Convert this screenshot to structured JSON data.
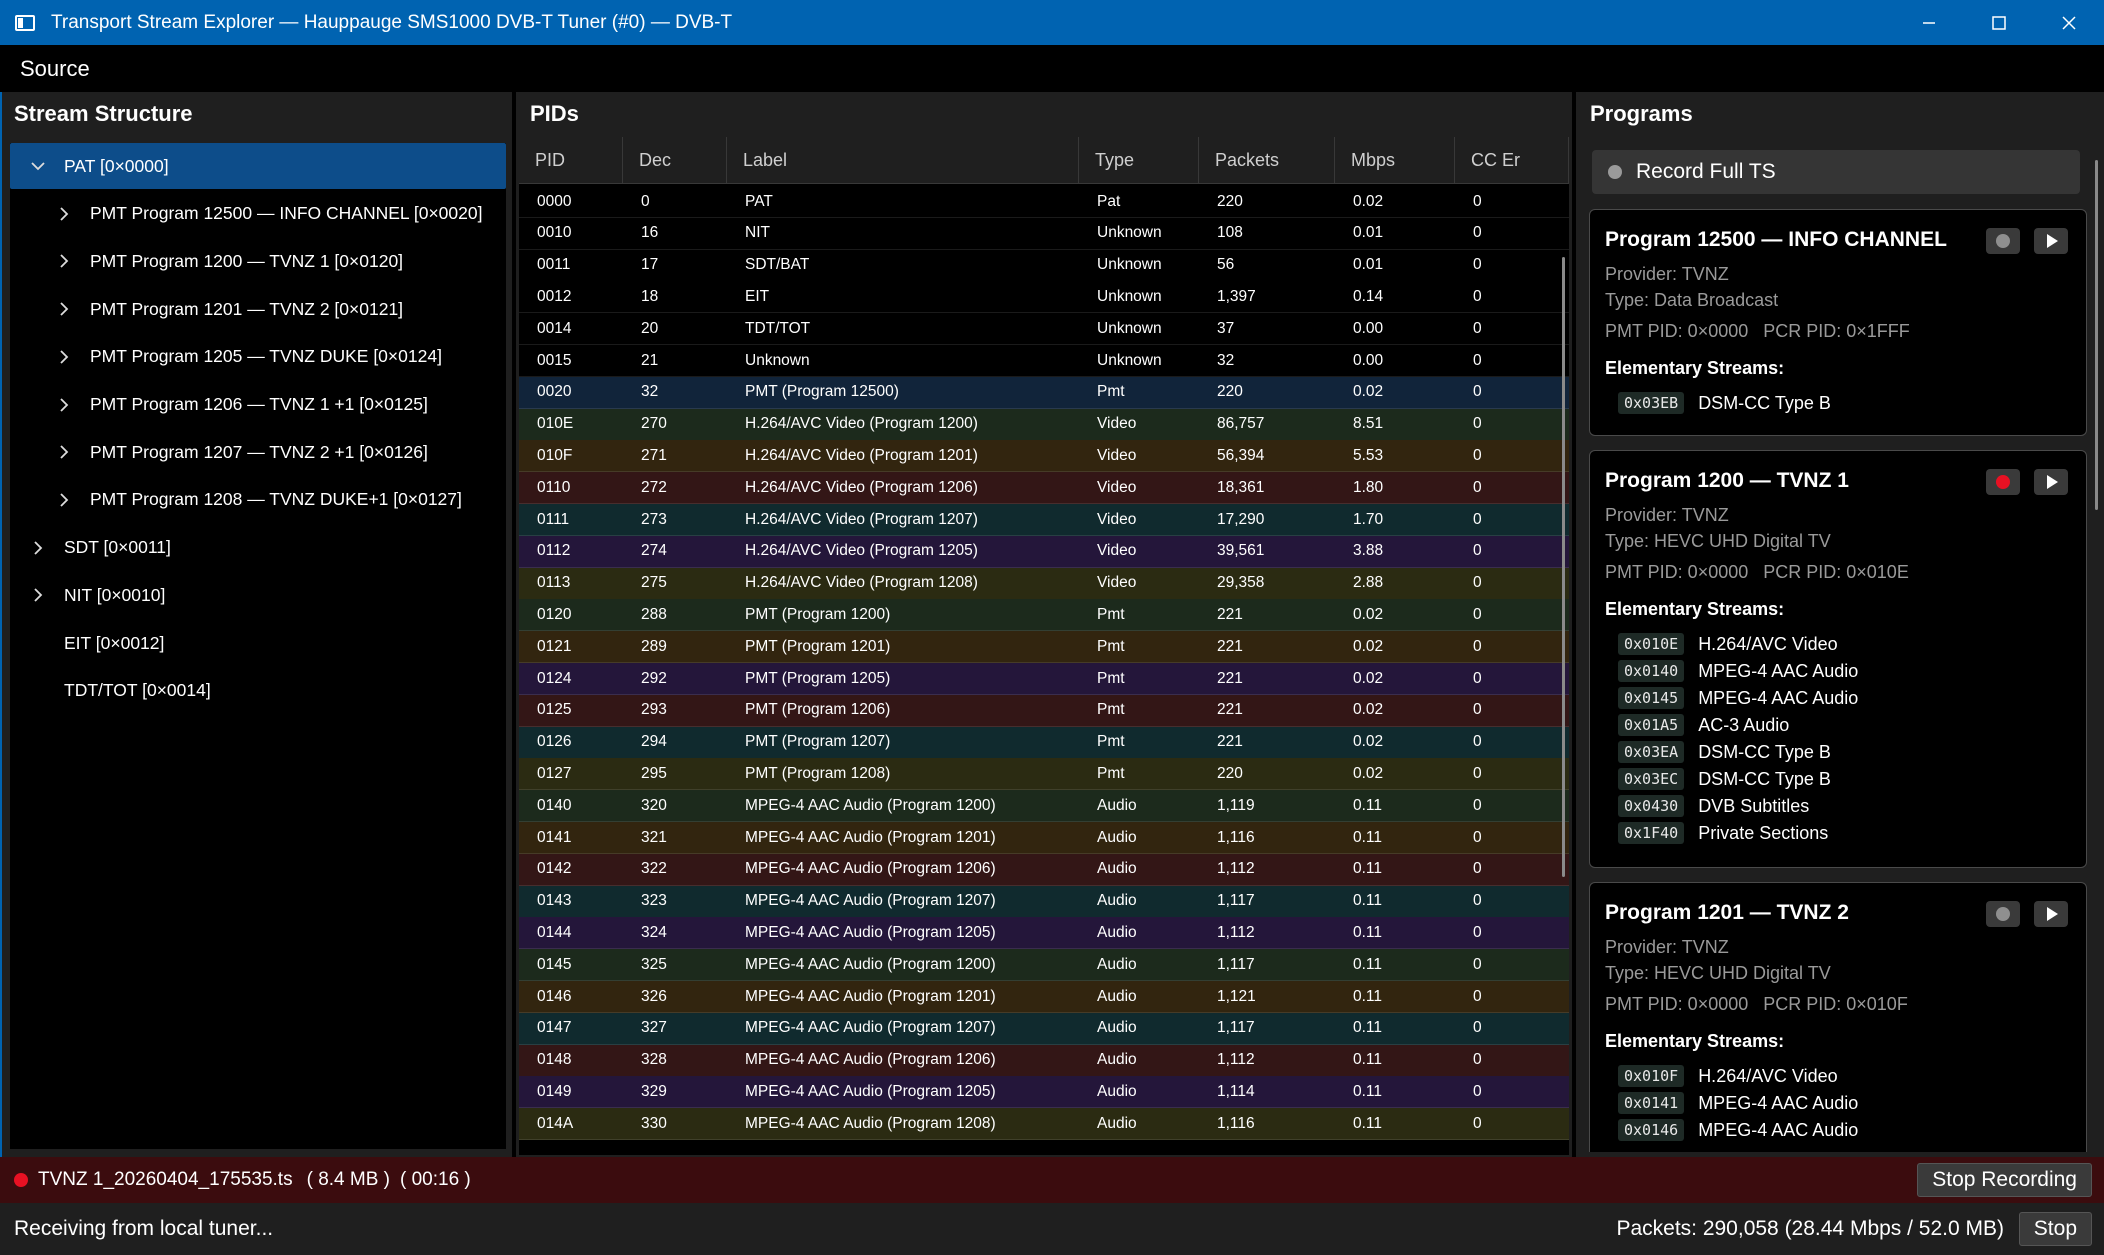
{
  "window": {
    "title": "Transport Stream Explorer — Hauppauge SMS1000 DVB-T Tuner (#0) — DVB-T",
    "minimize_icon": "minimize-icon",
    "maximize_icon": "maximize-icon",
    "close_icon": "close-icon"
  },
  "menu": {
    "source": "Source"
  },
  "left": {
    "header": "Stream Structure",
    "items": [
      {
        "label": "PAT [0×0000]",
        "level": 0,
        "expander": "chevron-down",
        "selected": true
      },
      {
        "label": "PMT Program 12500 — INFO CHANNEL [0×0020]",
        "level": 1,
        "expander": "chevron-right"
      },
      {
        "label": "PMT Program 1200 — TVNZ 1 [0×0120]",
        "level": 1,
        "expander": "chevron-right"
      },
      {
        "label": "PMT Program 1201 — TVNZ 2 [0×0121]",
        "level": 1,
        "expander": "chevron-right"
      },
      {
        "label": "PMT Program 1205 — TVNZ DUKE [0×0124]",
        "level": 1,
        "expander": "chevron-right"
      },
      {
        "label": "PMT Program 1206 — TVNZ 1 +1 [0×0125]",
        "level": 1,
        "expander": "chevron-right"
      },
      {
        "label": "PMT Program 1207 — TVNZ 2 +1 [0×0126]",
        "level": 1,
        "expander": "chevron-right"
      },
      {
        "label": "PMT Program 1208 — TVNZ DUKE+1 [0×0127]",
        "level": 1,
        "expander": "chevron-right"
      },
      {
        "label": "SDT [0×0011]",
        "level": 0,
        "expander": "chevron-right"
      },
      {
        "label": "NIT [0×0010]",
        "level": 0,
        "expander": "chevron-right"
      },
      {
        "label": "EIT [0×0012]",
        "level": 0,
        "expander": "none"
      },
      {
        "label": "TDT/TOT [0×0014]",
        "level": 0,
        "expander": "none"
      }
    ]
  },
  "pids": {
    "header": "PIDs",
    "columns": [
      "PID",
      "Dec",
      "Label",
      "Type",
      "Packets",
      "Mbps",
      "CC Er"
    ],
    "rows": [
      {
        "pid": "0000",
        "dec": "0",
        "label": "PAT",
        "type": "Pat",
        "packets": "220",
        "mbps": "0.02",
        "cc": "0",
        "tint": "#000000"
      },
      {
        "pid": "0010",
        "dec": "16",
        "label": "NIT",
        "type": "Unknown",
        "packets": "108",
        "mbps": "0.01",
        "cc": "0",
        "tint": "#000000"
      },
      {
        "pid": "0011",
        "dec": "17",
        "label": "SDT/BAT",
        "type": "Unknown",
        "packets": "56",
        "mbps": "0.01",
        "cc": "0",
        "tint": "#000000"
      },
      {
        "pid": "0012",
        "dec": "18",
        "label": "EIT",
        "type": "Unknown",
        "packets": "1,397",
        "mbps": "0.14",
        "cc": "0",
        "tint": "#000000"
      },
      {
        "pid": "0014",
        "dec": "20",
        "label": "TDT/TOT",
        "type": "Unknown",
        "packets": "37",
        "mbps": "0.00",
        "cc": "0",
        "tint": "#000000"
      },
      {
        "pid": "0015",
        "dec": "21",
        "label": "Unknown",
        "type": "Unknown",
        "packets": "32",
        "mbps": "0.00",
        "cc": "0",
        "tint": "#000000"
      },
      {
        "pid": "0020",
        "dec": "32",
        "label": "PMT (Program 12500)",
        "type": "Pmt",
        "packets": "220",
        "mbps": "0.02",
        "cc": "0",
        "tint": "#11243a"
      },
      {
        "pid": "010E",
        "dec": "270",
        "label": "H.264/AVC Video (Program 1200)",
        "type": "Video",
        "packets": "86,757",
        "mbps": "8.51",
        "cc": "0",
        "tint": "#1c2a1c"
      },
      {
        "pid": "010F",
        "dec": "271",
        "label": "H.264/AVC Video (Program 1201)",
        "type": "Video",
        "packets": "56,394",
        "mbps": "5.53",
        "cc": "0",
        "tint": "#32250f"
      },
      {
        "pid": "0110",
        "dec": "272",
        "label": "H.264/AVC Video (Program 1206)",
        "type": "Video",
        "packets": "18,361",
        "mbps": "1.80",
        "cc": "0",
        "tint": "#331616"
      },
      {
        "pid": "0111",
        "dec": "273",
        "label": "H.264/AVC Video (Program 1207)",
        "type": "Video",
        "packets": "17,290",
        "mbps": "1.70",
        "cc": "0",
        "tint": "#102a2e"
      },
      {
        "pid": "0112",
        "dec": "274",
        "label": "H.264/AVC Video (Program 1205)",
        "type": "Video",
        "packets": "39,561",
        "mbps": "3.88",
        "cc": "0",
        "tint": "#24163a"
      },
      {
        "pid": "0113",
        "dec": "275",
        "label": "H.264/AVC Video (Program 1208)",
        "type": "Video",
        "packets": "29,358",
        "mbps": "2.88",
        "cc": "0",
        "tint": "#2b2b12"
      },
      {
        "pid": "0120",
        "dec": "288",
        "label": "PMT (Program 1200)",
        "type": "Pmt",
        "packets": "221",
        "mbps": "0.02",
        "cc": "0",
        "tint": "#1c2a1c"
      },
      {
        "pid": "0121",
        "dec": "289",
        "label": "PMT (Program 1201)",
        "type": "Pmt",
        "packets": "221",
        "mbps": "0.02",
        "cc": "0",
        "tint": "#32250f"
      },
      {
        "pid": "0124",
        "dec": "292",
        "label": "PMT (Program 1205)",
        "type": "Pmt",
        "packets": "221",
        "mbps": "0.02",
        "cc": "0",
        "tint": "#24163a"
      },
      {
        "pid": "0125",
        "dec": "293",
        "label": "PMT (Program 1206)",
        "type": "Pmt",
        "packets": "221",
        "mbps": "0.02",
        "cc": "0",
        "tint": "#331616"
      },
      {
        "pid": "0126",
        "dec": "294",
        "label": "PMT (Program 1207)",
        "type": "Pmt",
        "packets": "221",
        "mbps": "0.02",
        "cc": "0",
        "tint": "#102a2e"
      },
      {
        "pid": "0127",
        "dec": "295",
        "label": "PMT (Program 1208)",
        "type": "Pmt",
        "packets": "220",
        "mbps": "0.02",
        "cc": "0",
        "tint": "#2b2b12"
      },
      {
        "pid": "0140",
        "dec": "320",
        "label": "MPEG-4 AAC Audio (Program 1200)",
        "type": "Audio",
        "packets": "1,119",
        "mbps": "0.11",
        "cc": "0",
        "tint": "#1c2a1c"
      },
      {
        "pid": "0141",
        "dec": "321",
        "label": "MPEG-4 AAC Audio (Program 1201)",
        "type": "Audio",
        "packets": "1,116",
        "mbps": "0.11",
        "cc": "0",
        "tint": "#32250f"
      },
      {
        "pid": "0142",
        "dec": "322",
        "label": "MPEG-4 AAC Audio (Program 1206)",
        "type": "Audio",
        "packets": "1,112",
        "mbps": "0.11",
        "cc": "0",
        "tint": "#331616"
      },
      {
        "pid": "0143",
        "dec": "323",
        "label": "MPEG-4 AAC Audio (Program 1207)",
        "type": "Audio",
        "packets": "1,117",
        "mbps": "0.11",
        "cc": "0",
        "tint": "#102a2e"
      },
      {
        "pid": "0144",
        "dec": "324",
        "label": "MPEG-4 AAC Audio (Program 1205)",
        "type": "Audio",
        "packets": "1,112",
        "mbps": "0.11",
        "cc": "0",
        "tint": "#24163a"
      },
      {
        "pid": "0145",
        "dec": "325",
        "label": "MPEG-4 AAC Audio (Program 1200)",
        "type": "Audio",
        "packets": "1,117",
        "mbps": "0.11",
        "cc": "0",
        "tint": "#1c2a1c"
      },
      {
        "pid": "0146",
        "dec": "326",
        "label": "MPEG-4 AAC Audio (Program 1201)",
        "type": "Audio",
        "packets": "1,121",
        "mbps": "0.11",
        "cc": "0",
        "tint": "#32250f"
      },
      {
        "pid": "0147",
        "dec": "327",
        "label": "MPEG-4 AAC Audio (Program 1207)",
        "type": "Audio",
        "packets": "1,117",
        "mbps": "0.11",
        "cc": "0",
        "tint": "#102a2e"
      },
      {
        "pid": "0148",
        "dec": "328",
        "label": "MPEG-4 AAC Audio (Program 1206)",
        "type": "Audio",
        "packets": "1,112",
        "mbps": "0.11",
        "cc": "0",
        "tint": "#331616"
      },
      {
        "pid": "0149",
        "dec": "329",
        "label": "MPEG-4 AAC Audio (Program 1205)",
        "type": "Audio",
        "packets": "1,114",
        "mbps": "0.11",
        "cc": "0",
        "tint": "#24163a"
      },
      {
        "pid": "014A",
        "dec": "330",
        "label": "MPEG-4 AAC Audio (Program 1208)",
        "type": "Audio",
        "packets": "1,116",
        "mbps": "0.11",
        "cc": "0",
        "tint": "#2b2b12"
      }
    ]
  },
  "programs": {
    "header": "Programs",
    "record_full": "Record Full TS",
    "es_heading": "Elementary Streams:",
    "cards": [
      {
        "title": "Program 12500 — INFO CHANNEL",
        "provider": "Provider: TVNZ",
        "type": "Type: Data Broadcast",
        "pids": "PMT PID: 0×0000   PCR PID: 0×1FFF",
        "recording": false,
        "streams": [
          {
            "pid": "0x03EB",
            "desc": "DSM-CC Type B"
          }
        ]
      },
      {
        "title": "Program 1200 — TVNZ 1",
        "provider": "Provider: TVNZ",
        "type": "Type: HEVC UHD Digital TV",
        "pids": "PMT PID: 0×0000   PCR PID: 0×010E",
        "recording": true,
        "streams": [
          {
            "pid": "0x010E",
            "desc": "H.264/AVC Video"
          },
          {
            "pid": "0x0140",
            "desc": "MPEG-4 AAC Audio"
          },
          {
            "pid": "0x0145",
            "desc": "MPEG-4 AAC Audio"
          },
          {
            "pid": "0x01A5",
            "desc": "AC-3 Audio"
          },
          {
            "pid": "0x03EA",
            "desc": "DSM-CC Type B"
          },
          {
            "pid": "0x03EC",
            "desc": "DSM-CC Type B"
          },
          {
            "pid": "0x0430",
            "desc": "DVB Subtitles"
          },
          {
            "pid": "0x1F40",
            "desc": "Private Sections"
          }
        ]
      },
      {
        "title": "Program 1201 — TVNZ 2",
        "provider": "Provider: TVNZ",
        "type": "Type: HEVC UHD Digital TV",
        "pids": "PMT PID: 0×0000   PCR PID: 0×010F",
        "recording": false,
        "streams": [
          {
            "pid": "0x010F",
            "desc": "H.264/AVC Video"
          },
          {
            "pid": "0x0141",
            "desc": "MPEG-4 AAC Audio"
          },
          {
            "pid": "0x0146",
            "desc": "MPEG-4 AAC Audio"
          }
        ]
      }
    ]
  },
  "recording": {
    "file": "TVNZ 1_20260404_175535.ts",
    "size": "( 8.4 MB )",
    "time": "( 00:16 )",
    "stop_label": "Stop Recording"
  },
  "status": {
    "text": "Receiving from local tuner...",
    "packets": "Packets: 290,058 (28.44 Mbps / 52.0 MB)",
    "stop_label": "Stop"
  },
  "colors": {
    "titlebar": "#0063b1",
    "selection": "#0d4d8a",
    "record_active": "#e81123",
    "recording_bar": "#3b0c0e"
  }
}
